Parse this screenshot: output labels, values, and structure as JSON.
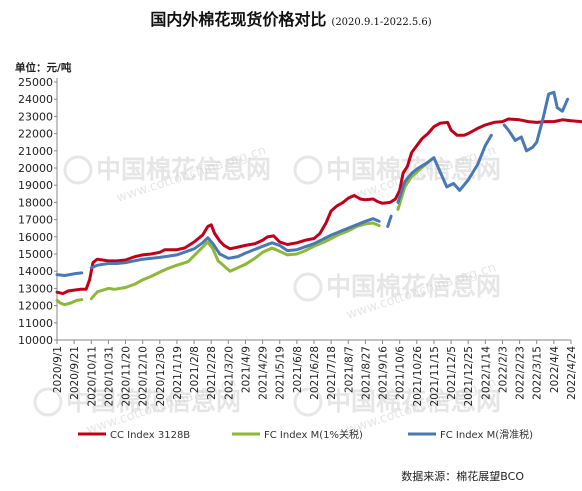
{
  "chart_data": {
    "type": "line",
    "title": "国内外棉花现货价格对比",
    "subtitle": "(2020.9.1-2022.5.6)",
    "unit": "单位：元/吨",
    "source": "数据来源：棉花展望BCO",
    "watermark": "中国棉花信息网",
    "watermark_url": "www.cottonchina.org.cn",
    "ylim": [
      10000,
      25000
    ],
    "yticks": [
      10000,
      11000,
      12000,
      13000,
      14000,
      15000,
      16000,
      17000,
      18000,
      19000,
      20000,
      21000,
      22000,
      23000,
      24000,
      25000
    ],
    "xlim": [
      "2020-09-01",
      "2022-04-24"
    ],
    "xticks": [
      "2020/9/1",
      "2020/9/21",
      "2020/10/11",
      "2020/10/31",
      "2020/11/20",
      "2020/12/10",
      "2020/12/30",
      "2021/1/19",
      "2021/2/8",
      "2021/2/28",
      "2021/3/20",
      "2021/4/9",
      "2021/4/29",
      "2021/5/19",
      "2021/6/8",
      "2021/6/28",
      "2021/7/18",
      "2021/8/7",
      "2021/8/27",
      "2021/9/16",
      "2021/10/6",
      "2021/10/26",
      "2021/11/15",
      "2021/12/5",
      "2021/12/25",
      "2022/1/14",
      "2022/2/3",
      "2022/2/23",
      "2022/3/15",
      "2022/4/4",
      "2022/4/24"
    ],
    "series": [
      {
        "name": "CC Index 3128B",
        "color": "#c0001b",
        "points": [
          [
            "2020-09-01",
            12780
          ],
          [
            "2020-09-08",
            12700
          ],
          [
            "2020-09-14",
            12850
          ],
          [
            "2020-09-21",
            12900
          ],
          [
            "2020-09-28",
            12950
          ],
          [
            "2020-10-05",
            12950
          ],
          [
            "2020-10-09",
            13500
          ],
          [
            "2020-10-13",
            14500
          ],
          [
            "2020-10-18",
            14700
          ],
          [
            "2020-10-24",
            14650
          ],
          [
            "2020-10-31",
            14600
          ],
          [
            "2020-11-10",
            14600
          ],
          [
            "2020-11-20",
            14650
          ],
          [
            "2020-12-01",
            14850
          ],
          [
            "2020-12-10",
            14950
          ],
          [
            "2020-12-20",
            15000
          ],
          [
            "2020-12-30",
            15100
          ],
          [
            "2021-01-05",
            15250
          ],
          [
            "2021-01-19",
            15250
          ],
          [
            "2021-01-28",
            15350
          ],
          [
            "2021-02-08",
            15700
          ],
          [
            "2021-02-18",
            16100
          ],
          [
            "2021-02-24",
            16600
          ],
          [
            "2021-02-28",
            16700
          ],
          [
            "2021-03-04",
            16200
          ],
          [
            "2021-03-10",
            15750
          ],
          [
            "2021-03-15",
            15500
          ],
          [
            "2021-03-22",
            15300
          ],
          [
            "2021-03-31",
            15400
          ],
          [
            "2021-04-09",
            15500
          ],
          [
            "2021-04-20",
            15600
          ],
          [
            "2021-04-29",
            15800
          ],
          [
            "2021-05-05",
            16000
          ],
          [
            "2021-05-12",
            16050
          ],
          [
            "2021-05-19",
            15700
          ],
          [
            "2021-05-28",
            15550
          ],
          [
            "2021-06-08",
            15650
          ],
          [
            "2021-06-18",
            15800
          ],
          [
            "2021-06-28",
            15900
          ],
          [
            "2021-07-05",
            16200
          ],
          [
            "2021-07-12",
            16800
          ],
          [
            "2021-07-18",
            17500
          ],
          [
            "2021-07-25",
            17800
          ],
          [
            "2021-08-01",
            18000
          ],
          [
            "2021-08-07",
            18250
          ],
          [
            "2021-08-14",
            18400
          ],
          [
            "2021-08-21",
            18200
          ],
          [
            "2021-08-27",
            18150
          ],
          [
            "2021-09-05",
            18200
          ],
          [
            "2021-09-10",
            18050
          ],
          [
            "2021-09-16",
            17950
          ],
          [
            "2021-09-25",
            18000
          ],
          [
            "2021-10-01",
            18200
          ],
          [
            "2021-10-06",
            18700
          ],
          [
            "2021-10-10",
            19700
          ],
          [
            "2021-10-15",
            20100
          ],
          [
            "2021-10-20",
            20900
          ],
          [
            "2021-10-26",
            21300
          ],
          [
            "2021-11-01",
            21700
          ],
          [
            "2021-11-08",
            22000
          ],
          [
            "2021-11-15",
            22400
          ],
          [
            "2021-11-22",
            22600
          ],
          [
            "2021-12-01",
            22650
          ],
          [
            "2021-12-05",
            22200
          ],
          [
            "2021-12-12",
            21900
          ],
          [
            "2021-12-20",
            21900
          ],
          [
            "2021-12-25",
            22000
          ],
          [
            "2022-01-05",
            22300
          ],
          [
            "2022-01-14",
            22500
          ],
          [
            "2022-01-24",
            22650
          ],
          [
            "2022-02-03",
            22700
          ],
          [
            "2022-02-10",
            22850
          ],
          [
            "2022-02-23",
            22800
          ],
          [
            "2022-03-05",
            22700
          ],
          [
            "2022-03-15",
            22650
          ],
          [
            "2022-03-25",
            22700
          ],
          [
            "2022-04-04",
            22700
          ],
          [
            "2022-04-14",
            22800
          ],
          [
            "2022-04-24",
            22750
          ],
          [
            "2022-05-06",
            22700
          ]
        ]
      },
      {
        "name": "FC Index M(1%关税)",
        "color": "#8db839",
        "points": [
          [
            "2020-09-01",
            12300
          ],
          [
            "2020-09-05",
            12150
          ],
          [
            "2020-09-10",
            12050
          ],
          [
            "2020-09-17",
            12150
          ],
          [
            "2020-09-24",
            12300
          ],
          [
            "2020-09-30",
            12350
          ],
          null,
          [
            "2020-10-11",
            12400
          ],
          [
            "2020-10-18",
            12800
          ],
          [
            "2020-10-25",
            12900
          ],
          [
            "2020-10-31",
            13000
          ],
          [
            "2020-11-07",
            12950
          ],
          [
            "2020-11-20",
            13050
          ],
          [
            "2020-12-01",
            13250
          ],
          [
            "2020-12-10",
            13500
          ],
          [
            "2020-12-20",
            13700
          ],
          [
            "2020-12-30",
            13950
          ],
          [
            "2021-01-08",
            14150
          ],
          [
            "2021-01-19",
            14350
          ],
          [
            "2021-02-01",
            14550
          ],
          [
            "2021-02-08",
            14900
          ],
          [
            "2021-02-15",
            15250
          ],
          [
            "2021-02-24",
            15700
          ],
          [
            "2021-03-02",
            15300
          ],
          [
            "2021-03-08",
            14600
          ],
          [
            "2021-03-15",
            14300
          ],
          [
            "2021-03-22",
            14000
          ],
          [
            "2021-03-31",
            14200
          ],
          [
            "2021-04-09",
            14400
          ],
          [
            "2021-04-20",
            14750
          ],
          [
            "2021-04-29",
            15100
          ],
          [
            "2021-05-10",
            15350
          ],
          [
            "2021-05-19",
            15150
          ],
          [
            "2021-05-28",
            14950
          ],
          [
            "2021-06-08",
            15000
          ],
          [
            "2021-06-18",
            15200
          ],
          [
            "2021-06-28",
            15450
          ],
          [
            "2021-07-10",
            15700
          ],
          [
            "2021-07-18",
            15900
          ],
          [
            "2021-07-28",
            16150
          ],
          [
            "2021-08-07",
            16350
          ],
          [
            "2021-08-17",
            16600
          ],
          [
            "2021-08-27",
            16750
          ],
          [
            "2021-09-05",
            16800
          ],
          [
            "2021-09-12",
            16650
          ],
          null,
          [
            "2021-10-04",
            17600
          ],
          [
            "2021-10-12",
            18900
          ],
          [
            "2021-10-20",
            19500
          ],
          [
            "2021-10-28",
            19850
          ],
          [
            "2021-11-05",
            20200
          ],
          [
            "2021-11-12",
            20500
          ]
        ]
      },
      {
        "name": "FC Index M(滑准税)",
        "color": "#4a78b4",
        "points": [
          [
            "2020-09-01",
            13800
          ],
          [
            "2020-09-10",
            13750
          ],
          [
            "2020-09-21",
            13850
          ],
          [
            "2020-09-30",
            13900
          ],
          null,
          [
            "2020-10-11",
            14200
          ],
          [
            "2020-10-18",
            14350
          ],
          [
            "2020-10-31",
            14450
          ],
          [
            "2020-11-10",
            14450
          ],
          [
            "2020-11-20",
            14500
          ],
          [
            "2020-12-10",
            14700
          ],
          [
            "2020-12-30",
            14800
          ],
          [
            "2021-01-19",
            14950
          ],
          [
            "2021-02-08",
            15300
          ],
          [
            "2021-02-18",
            15650
          ],
          [
            "2021-02-24",
            15950
          ],
          [
            "2021-03-02",
            15600
          ],
          [
            "2021-03-10",
            15000
          ],
          [
            "2021-03-20",
            14750
          ],
          [
            "2021-03-31",
            14850
          ],
          [
            "2021-04-09",
            15050
          ],
          [
            "2021-04-29",
            15450
          ],
          [
            "2021-05-10",
            15650
          ],
          [
            "2021-05-19",
            15500
          ],
          [
            "2021-05-28",
            15200
          ],
          [
            "2021-06-08",
            15250
          ],
          [
            "2021-06-28",
            15600
          ],
          [
            "2021-07-18",
            16100
          ],
          [
            "2021-08-07",
            16500
          ],
          [
            "2021-08-27",
            16900
          ],
          [
            "2021-09-05",
            17050
          ],
          [
            "2021-09-12",
            16900
          ],
          null,
          [
            "2021-09-22",
            16600
          ],
          [
            "2021-09-26",
            17200
          ],
          null,
          [
            "2021-10-04",
            18000
          ],
          [
            "2021-10-12",
            19200
          ],
          [
            "2021-10-20",
            19700
          ],
          [
            "2021-10-28",
            20000
          ],
          [
            "2021-11-07",
            20300
          ],
          [
            "2021-11-15",
            20600
          ],
          [
            "2021-11-22",
            19800
          ],
          [
            "2021-11-30",
            18900
          ],
          [
            "2021-12-08",
            19100
          ],
          [
            "2021-12-15",
            18700
          ],
          [
            "2021-12-25",
            19300
          ],
          [
            "2022-01-05",
            20200
          ],
          [
            "2022-01-14",
            21300
          ],
          [
            "2022-01-21",
            21900
          ],
          null,
          [
            "2022-02-05",
            22500
          ],
          [
            "2022-02-10",
            22200
          ],
          [
            "2022-02-18",
            21600
          ],
          [
            "2022-02-25",
            21800
          ],
          [
            "2022-03-03",
            21000
          ],
          [
            "2022-03-10",
            21200
          ],
          [
            "2022-03-15",
            21500
          ],
          [
            "2022-03-22",
            22800
          ],
          [
            "2022-03-29",
            24300
          ],
          [
            "2022-04-04",
            24400
          ],
          [
            "2022-04-08",
            23500
          ],
          [
            "2022-04-14",
            23300
          ],
          [
            "2022-04-20",
            24000
          ]
        ]
      }
    ]
  }
}
